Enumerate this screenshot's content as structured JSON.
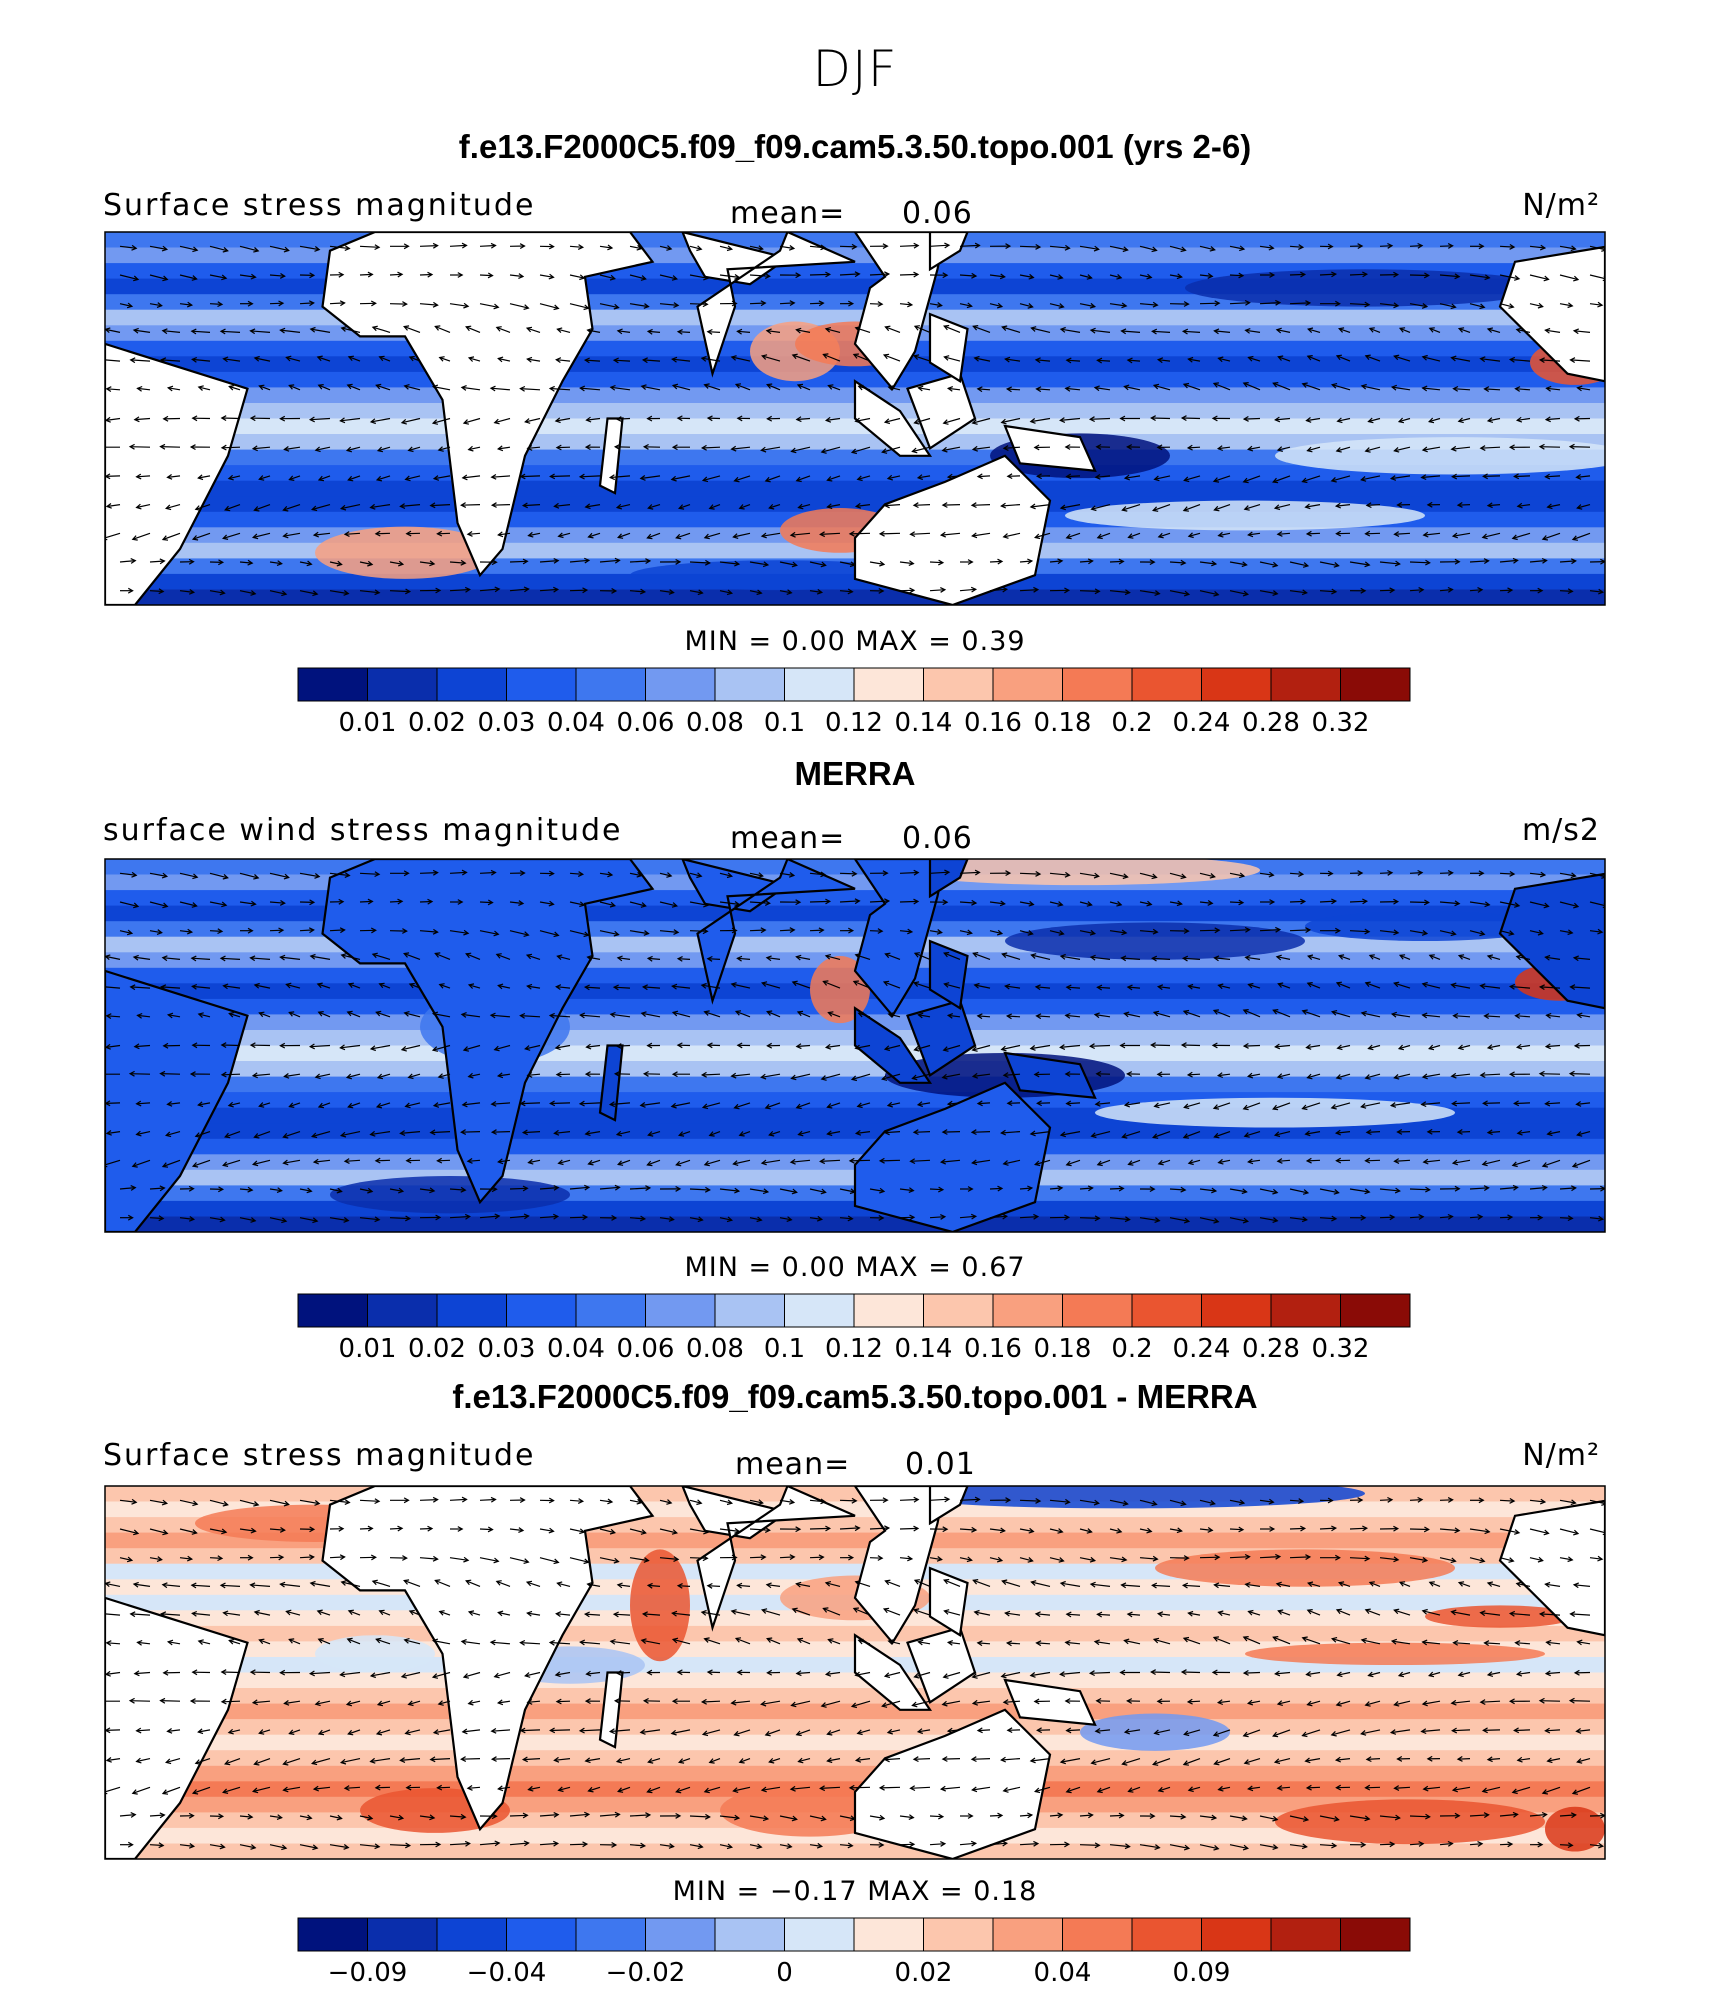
{
  "main_title": "DJF",
  "colors": {
    "land": "#ffffff",
    "coast": "#000000",
    "scale": [
      "#00127d",
      "#0a2eac",
      "#0d44d4",
      "#1f5cec",
      "#3e77ef",
      "#7299f1",
      "#a9c3f3",
      "#d6e6f8",
      "#fde6d9",
      "#fcc6ad",
      "#f9a07f",
      "#f47a55",
      "#ea5530",
      "#d93616",
      "#b22010",
      "#8a0b06"
    ]
  },
  "chart_data": [
    {
      "type": "heatmap",
      "title": "f.e13.F2000C5.f09_f09.cam5.3.50.topo.001 (yrs 2-6)",
      "left_label": "Surface stress magnitude",
      "mean_label": "mean=",
      "mean_value": "0.06",
      "units": "N/m²",
      "min_max": "MIN =    0.00  MAX =    0.39",
      "min": 0.0,
      "max": 0.39,
      "colorbar_ticks": [
        "0.01",
        "0.02",
        "0.03",
        "0.04",
        "0.06",
        "0.08",
        "0.1",
        "0.12",
        "0.14",
        "0.16",
        "0.18",
        "0.2",
        "0.24",
        "0.28",
        "0.32"
      ]
    },
    {
      "type": "heatmap",
      "title": "MERRA",
      "left_label": "surface wind stress magnitude",
      "mean_label": "mean=",
      "mean_value": "0.06",
      "units": "m/s2",
      "min_max": "MIN =    0.00  MAX =    0.67",
      "min": 0.0,
      "max": 0.67,
      "colorbar_ticks": [
        "0.01",
        "0.02",
        "0.03",
        "0.04",
        "0.06",
        "0.08",
        "0.1",
        "0.12",
        "0.14",
        "0.16",
        "0.18",
        "0.2",
        "0.24",
        "0.28",
        "0.32"
      ]
    },
    {
      "type": "heatmap",
      "title": "f.e13.F2000C5.f09_f09.cam5.3.50.topo.001 - MERRA",
      "left_label": "Surface stress magnitude",
      "mean_label": "mean=",
      "mean_value": "0.01",
      "units": "N/m²",
      "min_max": "MIN =  −0.17  MAX =    0.18",
      "min": -0.17,
      "max": 0.18,
      "colorbar_ticks": [
        "−0.09",
        "",
        "−0.04",
        "",
        "−0.02",
        "",
        "0",
        "",
        "0.02",
        "",
        "0.04",
        "",
        "0.09",
        "",
        ""
      ]
    }
  ]
}
